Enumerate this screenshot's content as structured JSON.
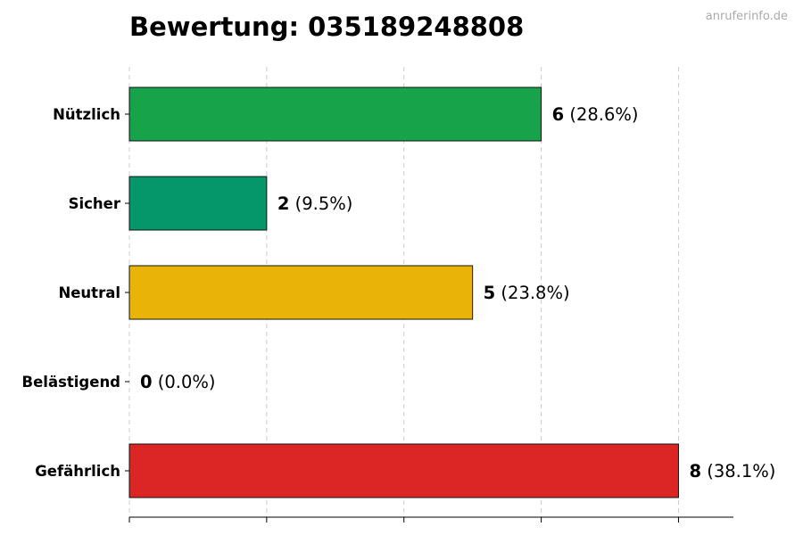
{
  "chart_data": {
    "type": "bar",
    "orientation": "horizontal",
    "title": "Bewertung: 035189248808",
    "source_label": "anruferinfo.de",
    "categories": [
      "Nützlich",
      "Sicher",
      "Neutral",
      "Belästigend",
      "Gefährlich"
    ],
    "values": [
      6,
      2,
      5,
      0,
      8
    ],
    "percent_labels": [
      "(28.6%)",
      "(9.5%)",
      "(23.8%)",
      "(0.0%)",
      "(38.1%)"
    ],
    "colors": [
      "#16a34a",
      "#059669",
      "#eab308",
      "#9ca3af",
      "#dc2626"
    ],
    "xlim": [
      0,
      8.8
    ],
    "x_gridlines": [
      0,
      2,
      4,
      6,
      8
    ],
    "grid": true,
    "grid_axis": "x",
    "xlabel": "",
    "ylabel": ""
  }
}
